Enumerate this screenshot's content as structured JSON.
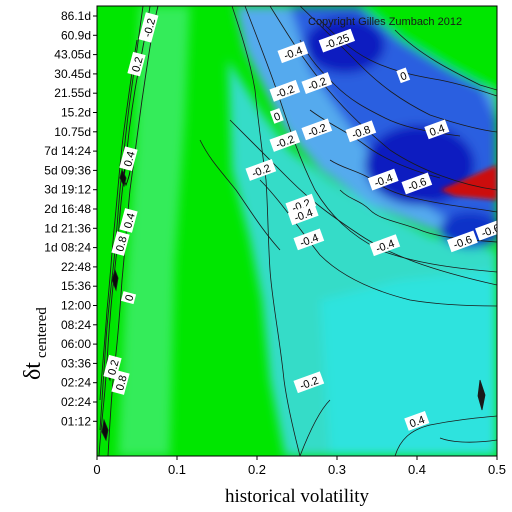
{
  "chart_data": {
    "type": "heatmap",
    "xlabel": "historical volatility",
    "ylabel_main": "δt",
    "ylabel_sub": "centered",
    "xlim": [
      0,
      0.5
    ],
    "x_ticks": [
      "0",
      "0.1",
      "0.2",
      "0.3",
      "0.4",
      "0.5"
    ],
    "y_ticks": [
      "86.1d",
      "60.9d",
      "43.05d",
      "30.45d",
      "21.55d",
      "15.2d",
      "10.75d",
      "7d 14:24",
      "5d 09:36",
      "3d 19:12",
      "2d 16:48",
      "1d 21:36",
      "1d 08:24",
      "22:48",
      "15:36",
      "12:00",
      "08:24",
      "06:00",
      "03:36",
      "02:24",
      "02:24",
      "01:12"
    ],
    "copyright": "Copyright Gilles Zumbach 2012",
    "colors": {
      "green": "#00e600",
      "light_green": "#33ee66",
      "cyan": "#33ddcc",
      "light_blue": "#55aaee",
      "blue": "#2255dd",
      "dark_blue": "#0a1fbb",
      "red": "#cc1111"
    },
    "contour_labels": [
      {
        "text": "-0.2",
        "x": 0.065,
        "y": 0.6
      },
      {
        "text": "-0.2",
        "x": 0.235,
        "y": 3.9
      },
      {
        "text": "-0.2",
        "x": 0.275,
        "y": 3.5
      },
      {
        "text": "-0.2",
        "x": 0.235,
        "y": 6.5
      },
      {
        "text": "-0.2",
        "x": 0.275,
        "y": 5.9
      },
      {
        "text": "-0.2",
        "x": 0.205,
        "y": 8.0
      },
      {
        "text": "-0.2",
        "x": 0.255,
        "y": 9.8
      },
      {
        "text": "-0.2",
        "x": 0.265,
        "y": 19.0
      },
      {
        "text": "0",
        "x": 0.225,
        "y": 5.2
      },
      {
        "text": "0",
        "x": 0.383,
        "y": 3.1
      },
      {
        "text": "0",
        "x": 0.04,
        "y": 14.6
      },
      {
        "text": "-0.25",
        "x": 0.3,
        "y": 1.3
      },
      {
        "text": "-0.4",
        "x": 0.245,
        "y": 1.9
      },
      {
        "text": "-0.4",
        "x": 0.258,
        "y": 10.3
      },
      {
        "text": "-0.4",
        "x": 0.265,
        "y": 11.6
      },
      {
        "text": "-0.4",
        "x": 0.36,
        "y": 11.9
      },
      {
        "text": "-0.4",
        "x": 0.358,
        "y": 8.5
      },
      {
        "text": "0.4",
        "x": 0.425,
        "y": 5.9
      },
      {
        "text": "-0.6",
        "x": 0.4,
        "y": 8.7
      },
      {
        "text": "-0.6",
        "x": 0.457,
        "y": 11.7
      },
      {
        "text": "-0.6",
        "x": 0.492,
        "y": 11.1
      },
      {
        "text": "-0.8",
        "x": 0.33,
        "y": 6.0
      },
      {
        "text": "0.4",
        "x": 0.04,
        "y": 7.4
      },
      {
        "text": "0.4",
        "x": 0.04,
        "y": 10.6
      },
      {
        "text": "0.4",
        "x": 0.4,
        "y": 21.0
      },
      {
        "text": "0.2",
        "x": 0.05,
        "y": 2.5
      },
      {
        "text": "0.8",
        "x": 0.03,
        "y": 11.8
      },
      {
        "text": "0.8",
        "x": 0.03,
        "y": 19.0
      },
      {
        "text": "0.2",
        "x": 0.02,
        "y": 18.2
      }
    ]
  }
}
